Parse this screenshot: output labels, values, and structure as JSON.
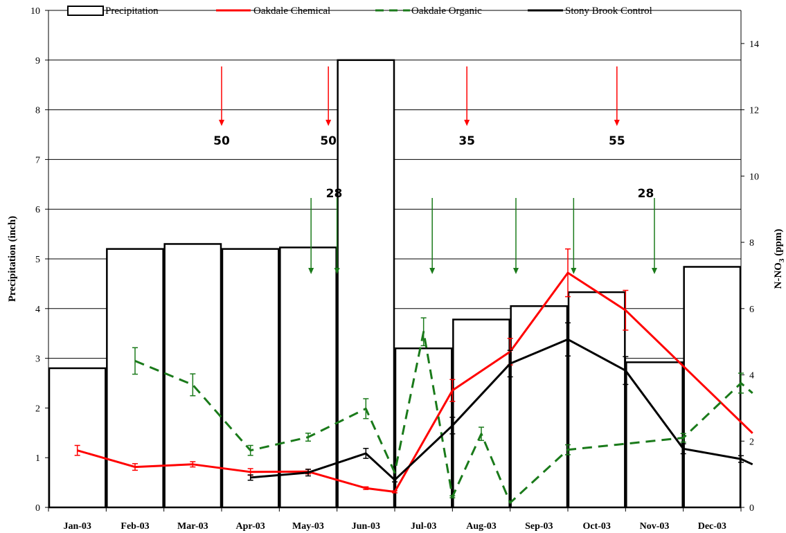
{
  "chart_data": {
    "type": "bar+line",
    "categories": [
      "Jan-03",
      "Feb-03",
      "Mar-03",
      "Apr-03",
      "May-03",
      "Jun-03",
      "Jul-03",
      "Aug-03",
      "Sep-03",
      "Oct-03",
      "Nov-03",
      "Dec-03"
    ],
    "precipitation": {
      "name": "Precipitation",
      "axis": "left",
      "values": [
        2.8,
        5.2,
        5.3,
        5.2,
        5.23,
        9.0,
        3.2,
        3.78,
        4.05,
        4.33,
        2.92,
        4.84
      ]
    },
    "series": [
      {
        "name": "Oakdale Chemical",
        "color": "#ff0000",
        "dash": "solid",
        "axis": "right",
        "points": [
          {
            "x": 0.0,
            "y": 1.72,
            "err": 0.15
          },
          {
            "x": 1.0,
            "y": 1.22,
            "err": 0.1
          },
          {
            "x": 2.0,
            "y": 1.3,
            "err": 0.08
          },
          {
            "x": 3.0,
            "y": 1.07,
            "err": 0.1
          },
          {
            "x": 4.0,
            "y": 1.08,
            "err": 0.07
          },
          {
            "x": 5.0,
            "y": 0.58,
            "err": 0.04
          },
          {
            "x": 5.5,
            "y": 0.47,
            "err": 0.03
          },
          {
            "x": 6.5,
            "y": 3.53,
            "err": 0.33
          },
          {
            "x": 7.5,
            "y": 4.7,
            "err": 0.4
          },
          {
            "x": 8.5,
            "y": 7.08,
            "err": 0.72
          },
          {
            "x": 9.5,
            "y": 5.95,
            "err": 0.6
          },
          {
            "x": 11.7,
            "y": 2.24,
            "err": 0
          }
        ]
      },
      {
        "name": "Oakdale Organic",
        "color": "#1a7a1a",
        "dash": "dashed",
        "axis": "right",
        "points": [
          {
            "x": 1.0,
            "y": 4.42,
            "err": 0.4
          },
          {
            "x": 2.0,
            "y": 3.7,
            "err": 0.33
          },
          {
            "x": 3.0,
            "y": 1.72,
            "err": 0.15
          },
          {
            "x": 4.0,
            "y": 2.12,
            "err": 0.12
          },
          {
            "x": 5.0,
            "y": 2.98,
            "err": 0.3
          },
          {
            "x": 5.5,
            "y": 1.05,
            "err": 0
          },
          {
            "x": 6.0,
            "y": 5.3,
            "err": 0.42
          },
          {
            "x": 6.5,
            "y": 0.32,
            "err": 0.03
          },
          {
            "x": 7.0,
            "y": 2.22,
            "err": 0.2
          },
          {
            "x": 7.5,
            "y": 0.14,
            "err": 0
          },
          {
            "x": 8.5,
            "y": 1.74,
            "err": 0.15
          },
          {
            "x": 9.5,
            "y": 1.92,
            "err": 0
          },
          {
            "x": 10.5,
            "y": 2.1,
            "err": 0.13
          },
          {
            "x": 11.5,
            "y": 3.75,
            "err": 0.3
          },
          {
            "x": 11.7,
            "y": 3.45,
            "err": 0
          }
        ]
      },
      {
        "name": "Stony Brook Control",
        "color": "#000000",
        "dash": "solid",
        "axis": "right",
        "points": [
          {
            "x": 3.0,
            "y": 0.9,
            "err": 0.08
          },
          {
            "x": 4.0,
            "y": 1.05,
            "err": 0.1
          },
          {
            "x": 5.0,
            "y": 1.63,
            "err": 0.15
          },
          {
            "x": 5.5,
            "y": 0.83,
            "err": 0.06
          },
          {
            "x": 6.5,
            "y": 2.47,
            "err": 0.25
          },
          {
            "x": 7.5,
            "y": 4.34,
            "err": 0.4
          },
          {
            "x": 8.5,
            "y": 5.07,
            "err": 0.5
          },
          {
            "x": 9.5,
            "y": 4.13,
            "err": 0.42
          },
          {
            "x": 10.5,
            "y": 1.77,
            "err": 0.15
          },
          {
            "x": 11.5,
            "y": 1.46,
            "err": 0.1
          },
          {
            "x": 11.7,
            "y": 1.3,
            "err": 0
          }
        ]
      }
    ],
    "left_axis": {
      "label": "Precipitation (inch)",
      "range": [
        0,
        10
      ],
      "ticks": [
        0,
        1,
        2,
        3,
        4,
        5,
        6,
        7,
        8,
        9,
        10
      ]
    },
    "right_axis": {
      "label_main": "N-NO",
      "label_sub": "3",
      "label_unit": " (ppm)",
      "range": [
        0,
        15
      ],
      "ticks": [
        0,
        2,
        4,
        6,
        8,
        10,
        12,
        14
      ]
    },
    "gridlines": true,
    "legend_position": "top",
    "annotations": {
      "red_arrows": [
        {
          "x": 2.5,
          "label": "50"
        },
        {
          "x": 4.35,
          "label": "50"
        },
        {
          "x": 6.75,
          "label": "35"
        },
        {
          "x": 9.35,
          "label": "55"
        }
      ],
      "green_arrows": [
        {
          "x": 4.05
        },
        {
          "x": 4.5
        },
        {
          "x": 6.15
        },
        {
          "x": 7.6
        },
        {
          "x": 8.6
        },
        {
          "x": 10.0
        }
      ],
      "green_labels": [
        {
          "x": 4.45,
          "label": "28"
        },
        {
          "x": 9.85,
          "label": "28"
        }
      ]
    }
  }
}
